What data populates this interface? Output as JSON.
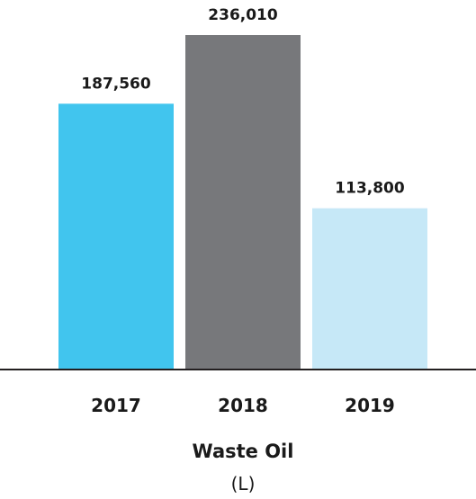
{
  "chart_data": {
    "type": "bar",
    "title": "Waste Oil",
    "subtitle": "(L)",
    "categories": [
      "2017",
      "2018",
      "2019"
    ],
    "values": [
      187560,
      236010,
      113800
    ],
    "value_labels": [
      "187,560",
      "236,010",
      "113,800"
    ],
    "bar_colors": [
      "#41C5EE",
      "#77787B",
      "#C6E8F7"
    ],
    "axis_color": "#231F20",
    "ylim": [
      0,
      236010
    ],
    "grid": false,
    "legend": "none"
  }
}
